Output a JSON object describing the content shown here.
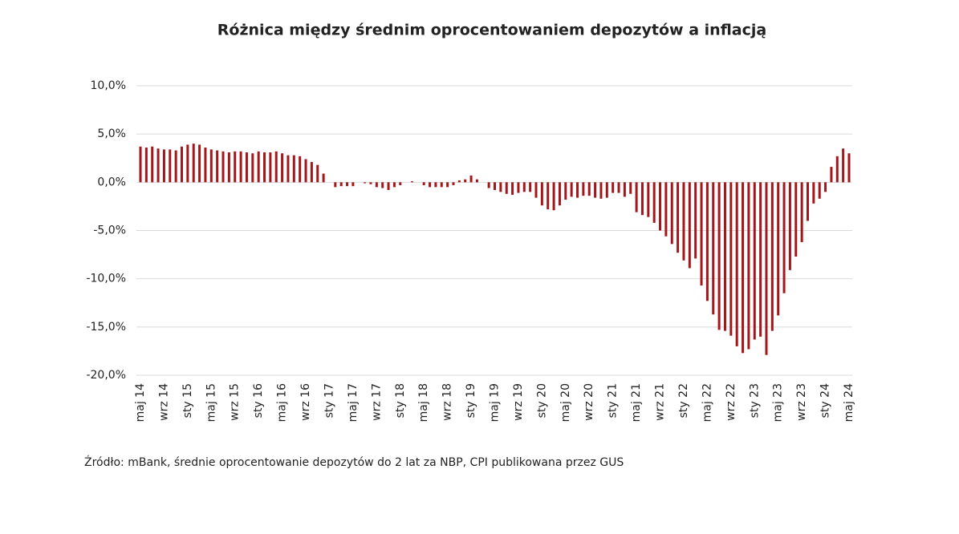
{
  "chart_data": {
    "type": "bar",
    "title": "Różnica między średnim oprocentowaniem depozytów a inflacją",
    "source": "Źródło: mBank, średnie oprocentowanie depozytów do 2 lat za NBP, CPI publikowana przez GUS",
    "color": "#a3161a",
    "grid": true,
    "ylim": [
      -20,
      10
    ],
    "yticks": [
      {
        "value": -20,
        "label": "-20,0%"
      },
      {
        "value": -15,
        "label": "-15,0%"
      },
      {
        "value": -10,
        "label": "-10,0%"
      },
      {
        "value": -5,
        "label": "-5,0%"
      },
      {
        "value": 0,
        "label": "0,0%"
      },
      {
        "value": 5,
        "label": "5,0%"
      },
      {
        "value": 10,
        "label": "10,0%"
      }
    ],
    "categories": [
      "maj 14",
      null,
      null,
      null,
      "wrz 14",
      null,
      null,
      null,
      "sty 15",
      null,
      null,
      null,
      "maj 15",
      null,
      null,
      null,
      "wrz 15",
      null,
      null,
      null,
      "sty 16",
      null,
      null,
      null,
      "maj 16",
      null,
      null,
      null,
      "wrz 16",
      null,
      null,
      null,
      "sty 17",
      null,
      null,
      null,
      "maj 17",
      null,
      null,
      null,
      "wrz 17",
      null,
      null,
      null,
      "sty 18",
      null,
      null,
      null,
      "maj 18",
      null,
      null,
      null,
      "wrz 18",
      null,
      null,
      null,
      "sty 19",
      null,
      null,
      null,
      "maj 19",
      null,
      null,
      null,
      "wrz 19",
      null,
      null,
      null,
      "sty 20",
      null,
      null,
      null,
      "maj 20",
      null,
      null,
      null,
      "wrz 20",
      null,
      null,
      null,
      "sty 21",
      null,
      null,
      null,
      "maj 21",
      null,
      null,
      null,
      "wrz 21",
      null,
      null,
      null,
      "sty 22",
      null,
      null,
      null,
      "maj 22",
      null,
      null,
      null,
      "wrz 22",
      null,
      null,
      null,
      "sty 23",
      null,
      null,
      null,
      "maj 23",
      null,
      null,
      null,
      "wrz 23",
      null,
      null,
      null,
      "sty 24",
      null,
      null,
      null,
      "maj 24"
    ],
    "values": [
      3.7,
      3.6,
      3.7,
      3.5,
      3.4,
      3.4,
      3.3,
      3.7,
      3.9,
      4.0,
      3.9,
      3.6,
      3.4,
      3.3,
      3.2,
      3.1,
      3.2,
      3.2,
      3.1,
      3.0,
      3.2,
      3.1,
      3.1,
      3.2,
      3.0,
      2.8,
      2.8,
      2.7,
      2.4,
      2.1,
      1.8,
      0.9,
      0.0,
      -0.5,
      -0.4,
      -0.4,
      -0.4,
      0.0,
      -0.1,
      -0.2,
      -0.5,
      -0.6,
      -0.8,
      -0.5,
      -0.3,
      0.0,
      0.1,
      0.0,
      -0.3,
      -0.5,
      -0.5,
      -0.5,
      -0.5,
      -0.3,
      0.2,
      0.3,
      0.7,
      0.3,
      0.0,
      -0.6,
      -0.8,
      -1.0,
      -1.2,
      -1.3,
      -1.1,
      -1.0,
      -1.0,
      -1.6,
      -2.4,
      -2.8,
      -2.9,
      -2.4,
      -1.8,
      -1.5,
      -1.6,
      -1.4,
      -1.4,
      -1.6,
      -1.7,
      -1.6,
      -1.1,
      -1.1,
      -1.5,
      -1.2,
      -3.1,
      -3.4,
      -3.6,
      -4.2,
      -5.0,
      -5.6,
      -6.4,
      -7.3,
      -8.1,
      -8.9,
      -7.9,
      -10.7,
      -12.3,
      -13.7,
      -15.3,
      -15.4,
      -15.9,
      -17.0,
      -17.7,
      -17.3,
      -16.3,
      -16.0,
      -17.9,
      -15.4,
      -13.8,
      -11.5,
      -9.1,
      -7.7,
      -6.2,
      -4.0,
      -2.2,
      -1.7,
      -1.0,
      1.6,
      2.7,
      3.5,
      3.0
    ]
  }
}
